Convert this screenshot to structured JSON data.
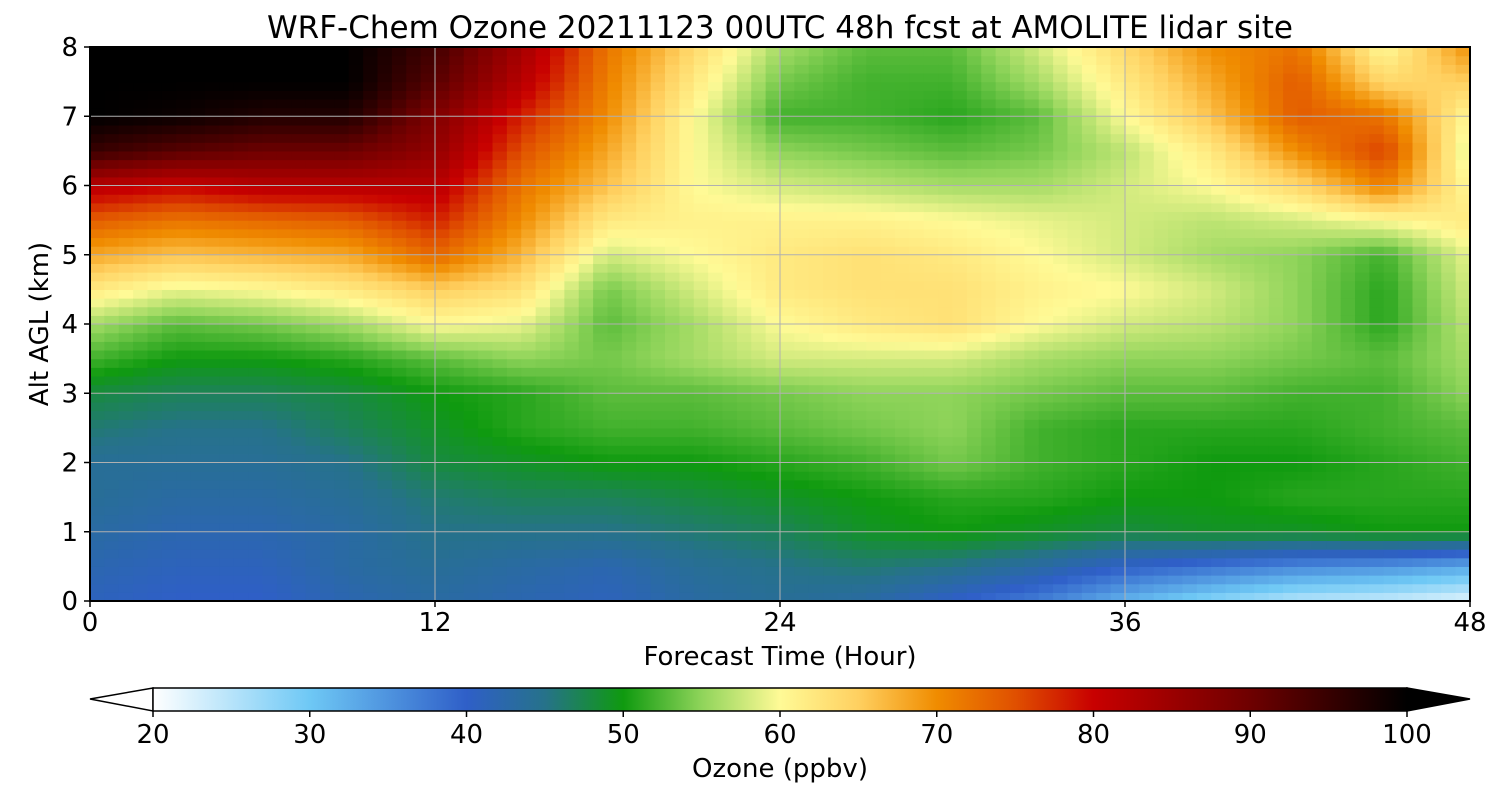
{
  "chart_data": {
    "type": "heatmap",
    "title": "WRF-Chem Ozone  20211123 00UTC 48h fcst at AMOLITE lidar site",
    "xlabel": "Forecast Time (Hour)",
    "ylabel": "Alt AGL (km)",
    "xlim": [
      0,
      48
    ],
    "ylim": [
      0,
      8
    ],
    "xticks": [
      0,
      12,
      24,
      36,
      48
    ],
    "yticks": [
      0,
      1,
      2,
      3,
      4,
      5,
      6,
      7,
      8
    ],
    "grid": true,
    "colorbar": {
      "label": "Ozone  (ppbv)",
      "range": [
        20,
        100
      ],
      "ticks": [
        20,
        30,
        40,
        50,
        60,
        70,
        80,
        90,
        100
      ],
      "extend": "both",
      "stops": [
        {
          "v": 20,
          "c": "#ffffff"
        },
        {
          "v": 30,
          "c": "#6ec8f5"
        },
        {
          "v": 40,
          "c": "#2f5fc8"
        },
        {
          "v": 45,
          "c": "#26728a"
        },
        {
          "v": 50,
          "c": "#0f9a0f"
        },
        {
          "v": 55,
          "c": "#8fd45a"
        },
        {
          "v": 60,
          "c": "#fffa96"
        },
        {
          "v": 65,
          "c": "#ffd060"
        },
        {
          "v": 70,
          "c": "#f08c00"
        },
        {
          "v": 75,
          "c": "#e05000"
        },
        {
          "v": 80,
          "c": "#c80000"
        },
        {
          "v": 90,
          "c": "#6e0000"
        },
        {
          "v": 100,
          "c": "#000000"
        }
      ]
    },
    "x_hours": [
      0,
      3,
      6,
      9,
      12,
      15,
      18,
      21,
      24,
      27,
      30,
      33,
      36,
      39,
      42,
      45,
      48
    ],
    "y_km": [
      0,
      0.5,
      1,
      1.5,
      2,
      2.5,
      3,
      3.5,
      4,
      4.5,
      5,
      5.5,
      6,
      6.5,
      7,
      7.5,
      8
    ],
    "values_ppbv": [
      [
        41,
        40,
        40,
        42,
        43,
        42,
        41,
        43,
        44,
        43,
        40,
        37,
        32,
        28,
        25,
        24,
        22
      ],
      [
        42,
        41,
        41,
        43,
        44,
        43,
        42,
        44,
        45,
        46,
        45,
        43,
        40,
        38,
        36,
        35,
        33
      ],
      [
        43,
        42,
        42,
        43,
        45,
        45,
        45,
        46,
        47,
        49,
        50,
        49,
        48,
        49,
        49,
        50,
        50
      ],
      [
        44,
        43,
        43,
        44,
        46,
        47,
        47,
        48,
        49,
        50,
        51,
        51,
        50,
        50,
        51,
        51,
        51
      ],
      [
        44,
        44,
        44,
        45,
        48,
        49,
        50,
        50,
        51,
        52,
        54,
        52,
        51,
        50,
        50,
        51,
        52
      ],
      [
        46,
        45,
        45,
        47,
        49,
        51,
        52,
        52,
        53,
        54,
        55,
        52,
        51,
        51,
        51,
        52,
        53
      ],
      [
        48,
        47,
        47,
        48,
        50,
        51,
        53,
        53,
        54,
        55,
        55,
        54,
        53,
        53,
        52,
        52,
        55
      ],
      [
        52,
        50,
        50,
        51,
        53,
        55,
        54,
        56,
        58,
        58,
        58,
        56,
        55,
        55,
        54,
        53,
        56
      ],
      [
        56,
        53,
        54,
        56,
        60,
        59,
        53,
        56,
        60,
        62,
        63,
        60,
        58,
        57,
        55,
        51,
        57
      ],
      [
        62,
        59,
        60,
        62,
        65,
        63,
        54,
        58,
        62,
        63,
        63,
        61,
        60,
        58,
        55,
        51,
        58
      ],
      [
        68,
        66,
        67,
        68,
        73,
        67,
        58,
        60,
        62,
        63,
        62,
        60,
        58,
        56,
        55,
        52,
        59
      ],
      [
        74,
        72,
        73,
        74,
        78,
        70,
        62,
        61,
        61,
        61,
        60,
        59,
        58,
        57,
        58,
        60,
        62
      ],
      [
        82,
        80,
        82,
        82,
        82,
        72,
        66,
        60,
        58,
        57,
        56,
        56,
        58,
        60,
        64,
        71,
        60
      ],
      [
        95,
        92,
        90,
        90,
        86,
        75,
        68,
        60,
        55,
        54,
        53,
        54,
        57,
        62,
        70,
        76,
        58
      ],
      [
        100,
        99,
        97,
        97,
        88,
        78,
        70,
        60,
        52,
        52,
        51,
        53,
        60,
        66,
        74,
        72,
        60
      ],
      [
        100,
        100,
        100,
        100,
        92,
        82,
        71,
        62,
        54,
        52,
        52,
        56,
        62,
        68,
        74,
        64,
        65
      ],
      [
        100,
        100,
        100,
        100,
        94,
        84,
        72,
        64,
        56,
        53,
        53,
        58,
        64,
        70,
        72,
        60,
        70
      ]
    ]
  }
}
